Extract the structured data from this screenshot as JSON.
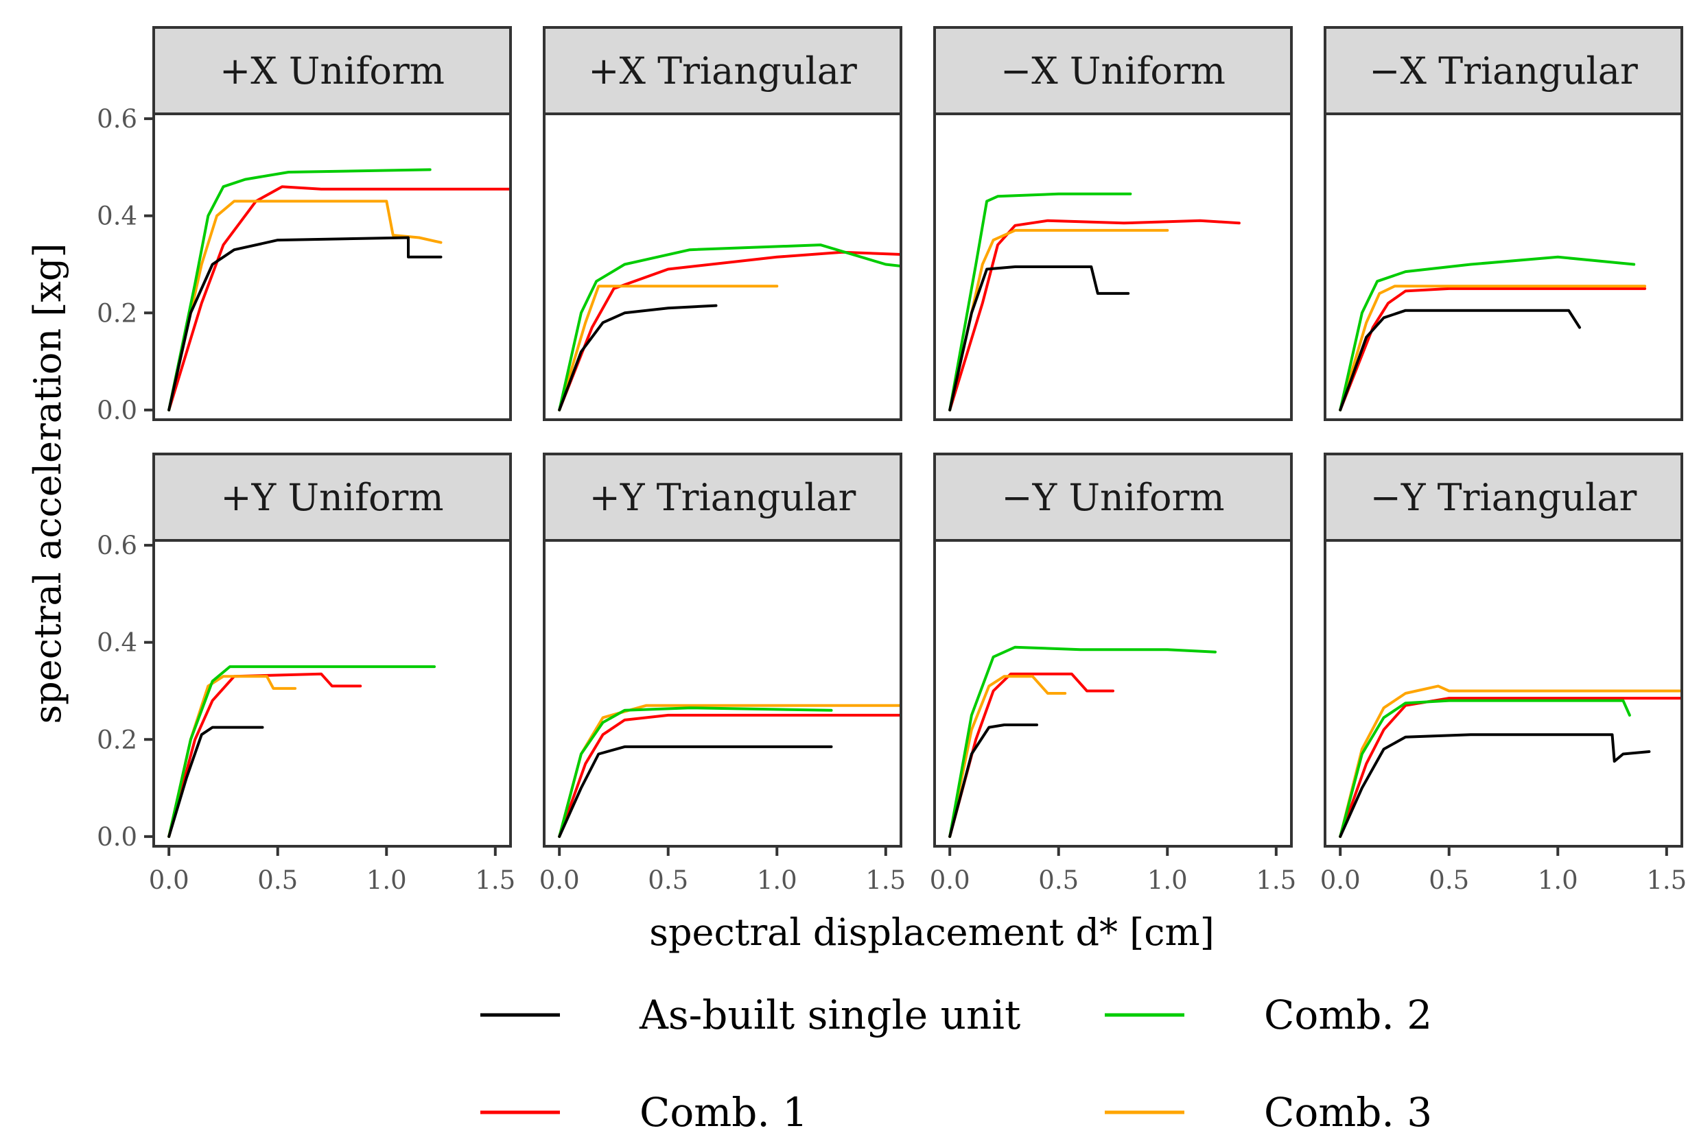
{
  "chart_data": {
    "type": "line",
    "xlabel": "spectral displacement d* [cm]",
    "ylabel": "spectral acceleration [xg]",
    "xlim": [
      -0.07,
      1.57
    ],
    "ylim": [
      -0.02,
      0.61
    ],
    "x_ticks": [
      0.0,
      0.5,
      1.0,
      1.5
    ],
    "x_tick_labels": [
      "0.0",
      "0.5",
      "1.0",
      "1.5"
    ],
    "y_ticks": [
      0.0,
      0.2,
      0.4,
      0.6
    ],
    "y_tick_labels": [
      "0.0",
      "0.2",
      "0.4",
      "0.6"
    ],
    "series_meta": [
      {
        "name": "As-built single unit",
        "color": "#000000"
      },
      {
        "name": "Comb. 1",
        "color": "#ff0000"
      },
      {
        "name": "Comb. 2",
        "color": "#00cc00"
      },
      {
        "name": "Comb. 3",
        "color": "#ffa500"
      }
    ],
    "legend": {
      "placement": "bottom",
      "entries": [
        "As-built single unit",
        "Comb. 2",
        "Comb. 1",
        "Comb. 3"
      ]
    },
    "panels": [
      {
        "title": "+X Uniform",
        "series": {
          "As-built single unit": [
            [
              0,
              0
            ],
            [
              0.1,
              0.2
            ],
            [
              0.2,
              0.3
            ],
            [
              0.3,
              0.33
            ],
            [
              0.5,
              0.35
            ],
            [
              1.1,
              0.355
            ],
            [
              1.1,
              0.315
            ],
            [
              1.25,
              0.315
            ]
          ],
          "Comb. 1": [
            [
              0,
              0
            ],
            [
              0.15,
              0.22
            ],
            [
              0.25,
              0.34
            ],
            [
              0.4,
              0.43
            ],
            [
              0.52,
              0.46
            ],
            [
              0.7,
              0.455
            ],
            [
              1.6,
              0.455
            ]
          ],
          "Comb. 2": [
            [
              0,
              0
            ],
            [
              0.12,
              0.26
            ],
            [
              0.18,
              0.4
            ],
            [
              0.25,
              0.46
            ],
            [
              0.35,
              0.475
            ],
            [
              0.55,
              0.49
            ],
            [
              1.2,
              0.495
            ]
          ],
          "Comb. 3": [
            [
              0,
              0
            ],
            [
              0.15,
              0.3
            ],
            [
              0.22,
              0.4
            ],
            [
              0.3,
              0.43
            ],
            [
              0.45,
              0.43
            ],
            [
              1.0,
              0.43
            ],
            [
              1.03,
              0.36
            ],
            [
              1.15,
              0.355
            ],
            [
              1.25,
              0.345
            ]
          ]
        }
      },
      {
        "title": "+X Triangular",
        "series": {
          "As-built single unit": [
            [
              0,
              0
            ],
            [
              0.1,
              0.12
            ],
            [
              0.2,
              0.18
            ],
            [
              0.3,
              0.2
            ],
            [
              0.5,
              0.21
            ],
            [
              0.72,
              0.215
            ]
          ],
          "Comb. 1": [
            [
              0,
              0
            ],
            [
              0.15,
              0.17
            ],
            [
              0.25,
              0.25
            ],
            [
              0.5,
              0.29
            ],
            [
              1.0,
              0.315
            ],
            [
              1.3,
              0.325
            ],
            [
              1.6,
              0.32
            ]
          ],
          "Comb. 2": [
            [
              0,
              0
            ],
            [
              0.1,
              0.2
            ],
            [
              0.17,
              0.265
            ],
            [
              0.3,
              0.3
            ],
            [
              0.6,
              0.33
            ],
            [
              1.2,
              0.34
            ],
            [
              1.5,
              0.3
            ],
            [
              1.6,
              0.295
            ]
          ],
          "Comb. 3": [
            [
              0,
              0
            ],
            [
              0.12,
              0.18
            ],
            [
              0.18,
              0.255
            ],
            [
              0.4,
              0.255
            ],
            [
              1.0,
              0.255
            ]
          ]
        }
      },
      {
        "title": "−X Uniform",
        "series": {
          "As-built single unit": [
            [
              0,
              0
            ],
            [
              0.1,
              0.2
            ],
            [
              0.17,
              0.29
            ],
            [
              0.3,
              0.295
            ],
            [
              0.65,
              0.295
            ],
            [
              0.68,
              0.24
            ],
            [
              0.82,
              0.24
            ]
          ],
          "Comb. 1": [
            [
              0,
              0
            ],
            [
              0.15,
              0.22
            ],
            [
              0.22,
              0.34
            ],
            [
              0.3,
              0.38
            ],
            [
              0.45,
              0.39
            ],
            [
              0.8,
              0.385
            ],
            [
              1.15,
              0.39
            ],
            [
              1.33,
              0.385
            ]
          ],
          "Comb. 2": [
            [
              0,
              0
            ],
            [
              0.12,
              0.3
            ],
            [
              0.17,
              0.43
            ],
            [
              0.22,
              0.44
            ],
            [
              0.5,
              0.445
            ],
            [
              0.83,
              0.445
            ]
          ],
          "Comb. 3": [
            [
              0,
              0
            ],
            [
              0.15,
              0.3
            ],
            [
              0.2,
              0.35
            ],
            [
              0.3,
              0.37
            ],
            [
              0.6,
              0.37
            ],
            [
              1.0,
              0.37
            ]
          ]
        }
      },
      {
        "title": "−X Triangular",
        "series": {
          "As-built single unit": [
            [
              0,
              0
            ],
            [
              0.12,
              0.15
            ],
            [
              0.2,
              0.19
            ],
            [
              0.3,
              0.205
            ],
            [
              0.8,
              0.205
            ],
            [
              1.05,
              0.205
            ],
            [
              1.1,
              0.17
            ]
          ],
          "Comb. 1": [
            [
              0,
              0
            ],
            [
              0.15,
              0.17
            ],
            [
              0.22,
              0.22
            ],
            [
              0.3,
              0.245
            ],
            [
              0.5,
              0.25
            ],
            [
              1.4,
              0.25
            ]
          ],
          "Comb. 2": [
            [
              0,
              0
            ],
            [
              0.1,
              0.2
            ],
            [
              0.17,
              0.265
            ],
            [
              0.3,
              0.285
            ],
            [
              0.6,
              0.3
            ],
            [
              1.0,
              0.315
            ],
            [
              1.35,
              0.3
            ]
          ],
          "Comb. 3": [
            [
              0,
              0
            ],
            [
              0.12,
              0.18
            ],
            [
              0.18,
              0.24
            ],
            [
              0.25,
              0.255
            ],
            [
              0.6,
              0.255
            ],
            [
              1.4,
              0.255
            ]
          ]
        }
      },
      {
        "title": "+Y Uniform",
        "series": {
          "As-built single unit": [
            [
              0,
              0
            ],
            [
              0.08,
              0.12
            ],
            [
              0.15,
              0.21
            ],
            [
              0.2,
              0.225
            ],
            [
              0.43,
              0.225
            ]
          ],
          "Comb. 1": [
            [
              0,
              0
            ],
            [
              0.12,
              0.2
            ],
            [
              0.2,
              0.28
            ],
            [
              0.3,
              0.33
            ],
            [
              0.7,
              0.335
            ],
            [
              0.75,
              0.31
            ],
            [
              0.88,
              0.31
            ]
          ],
          "Comb. 2": [
            [
              0,
              0
            ],
            [
              0.1,
              0.2
            ],
            [
              0.2,
              0.32
            ],
            [
              0.28,
              0.35
            ],
            [
              0.6,
              0.35
            ],
            [
              1.22,
              0.35
            ]
          ],
          "Comb. 3": [
            [
              0,
              0
            ],
            [
              0.1,
              0.2
            ],
            [
              0.18,
              0.31
            ],
            [
              0.25,
              0.33
            ],
            [
              0.45,
              0.33
            ],
            [
              0.48,
              0.305
            ],
            [
              0.58,
              0.305
            ]
          ]
        }
      },
      {
        "title": "+Y Triangular",
        "series": {
          "As-built single unit": [
            [
              0,
              0
            ],
            [
              0.1,
              0.1
            ],
            [
              0.18,
              0.17
            ],
            [
              0.3,
              0.185
            ],
            [
              0.7,
              0.185
            ],
            [
              1.25,
              0.185
            ]
          ],
          "Comb. 1": [
            [
              0,
              0
            ],
            [
              0.12,
              0.15
            ],
            [
              0.2,
              0.21
            ],
            [
              0.3,
              0.24
            ],
            [
              0.5,
              0.25
            ],
            [
              1.6,
              0.25
            ]
          ],
          "Comb. 2": [
            [
              0,
              0
            ],
            [
              0.1,
              0.17
            ],
            [
              0.2,
              0.235
            ],
            [
              0.3,
              0.26
            ],
            [
              0.6,
              0.265
            ],
            [
              1.25,
              0.26
            ]
          ],
          "Comb. 3": [
            [
              0,
              0
            ],
            [
              0.1,
              0.17
            ],
            [
              0.2,
              0.245
            ],
            [
              0.4,
              0.27
            ],
            [
              1.0,
              0.27
            ],
            [
              1.6,
              0.27
            ]
          ]
        }
      },
      {
        "title": "−Y Uniform",
        "series": {
          "As-built single unit": [
            [
              0,
              0
            ],
            [
              0.1,
              0.17
            ],
            [
              0.18,
              0.225
            ],
            [
              0.25,
              0.23
            ],
            [
              0.4,
              0.23
            ]
          ],
          "Comb. 1": [
            [
              0,
              0
            ],
            [
              0.12,
              0.2
            ],
            [
              0.2,
              0.3
            ],
            [
              0.28,
              0.335
            ],
            [
              0.56,
              0.335
            ],
            [
              0.63,
              0.3
            ],
            [
              0.75,
              0.3
            ]
          ],
          "Comb. 2": [
            [
              0,
              0
            ],
            [
              0.1,
              0.25
            ],
            [
              0.2,
              0.37
            ],
            [
              0.3,
              0.39
            ],
            [
              0.6,
              0.385
            ],
            [
              1.0,
              0.385
            ],
            [
              1.22,
              0.38
            ]
          ],
          "Comb. 3": [
            [
              0,
              0
            ],
            [
              0.1,
              0.22
            ],
            [
              0.18,
              0.31
            ],
            [
              0.25,
              0.33
            ],
            [
              0.38,
              0.33
            ],
            [
              0.45,
              0.295
            ],
            [
              0.53,
              0.295
            ]
          ]
        }
      },
      {
        "title": "−Y Triangular",
        "series": {
          "As-built single unit": [
            [
              0,
              0
            ],
            [
              0.1,
              0.1
            ],
            [
              0.2,
              0.18
            ],
            [
              0.3,
              0.205
            ],
            [
              0.6,
              0.21
            ],
            [
              1.2,
              0.21
            ],
            [
              1.25,
              0.21
            ],
            [
              1.26,
              0.155
            ],
            [
              1.3,
              0.17
            ],
            [
              1.42,
              0.175
            ]
          ],
          "Comb. 1": [
            [
              0,
              0
            ],
            [
              0.12,
              0.15
            ],
            [
              0.2,
              0.22
            ],
            [
              0.3,
              0.27
            ],
            [
              0.5,
              0.285
            ],
            [
              1.6,
              0.285
            ]
          ],
          "Comb. 2": [
            [
              0,
              0
            ],
            [
              0.1,
              0.17
            ],
            [
              0.2,
              0.245
            ],
            [
              0.3,
              0.275
            ],
            [
              0.5,
              0.28
            ],
            [
              1.3,
              0.28
            ],
            [
              1.33,
              0.25
            ]
          ],
          "Comb. 3": [
            [
              0,
              0
            ],
            [
              0.1,
              0.18
            ],
            [
              0.2,
              0.265
            ],
            [
              0.3,
              0.295
            ],
            [
              0.45,
              0.31
            ],
            [
              0.5,
              0.3
            ],
            [
              1.6,
              0.3
            ]
          ]
        }
      }
    ]
  }
}
